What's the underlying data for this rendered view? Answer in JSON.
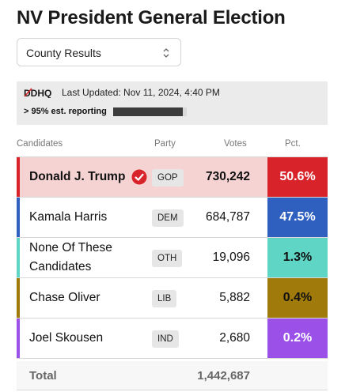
{
  "title": "NV President General Election",
  "view_select": {
    "selected": "County Results"
  },
  "info": {
    "logo_text": "DDHQ",
    "last_updated": "Last Updated: Nov 11, 2024, 4:40 PM",
    "reporting_label": "> 95% est. reporting",
    "reporting_fraction": 0.95
  },
  "table": {
    "headers": {
      "candidates": "Candidates",
      "party": "Party",
      "votes": "Votes",
      "pct": "Pct."
    },
    "rows": [
      {
        "name": "Donald J. Trump",
        "party": "GOP",
        "votes": "730,242",
        "pct": "50.6%",
        "winner": true,
        "color": "#d8232a",
        "row_bg": "#f6d3d3",
        "pct_text": "#ffffff"
      },
      {
        "name": "Kamala Harris",
        "party": "DEM",
        "votes": "684,787",
        "pct": "47.5%",
        "winner": false,
        "color": "#2f5fbf",
        "row_bg": "#ffffff",
        "pct_text": "#ffffff"
      },
      {
        "name": "None Of These Candidates",
        "party": "OTH",
        "votes": "19,096",
        "pct": "1.3%",
        "winner": false,
        "color": "#5fd5c5",
        "row_bg": "#ffffff",
        "pct_text": "#111111"
      },
      {
        "name": "Chase Oliver",
        "party": "LIB",
        "votes": "5,882",
        "pct": "0.4%",
        "winner": false,
        "color": "#a07a0a",
        "row_bg": "#ffffff",
        "pct_text": "#111111"
      },
      {
        "name": "Joel Skousen",
        "party": "IND",
        "votes": "2,680",
        "pct": "0.2%",
        "winner": false,
        "color": "#9b51e8",
        "row_bg": "#ffffff",
        "pct_text": "#ffffff"
      }
    ],
    "total": {
      "label": "Total",
      "votes": "1,442,687"
    }
  },
  "icons": {
    "winner": "check-circle-icon",
    "select": "chevron-up-down-icon"
  }
}
